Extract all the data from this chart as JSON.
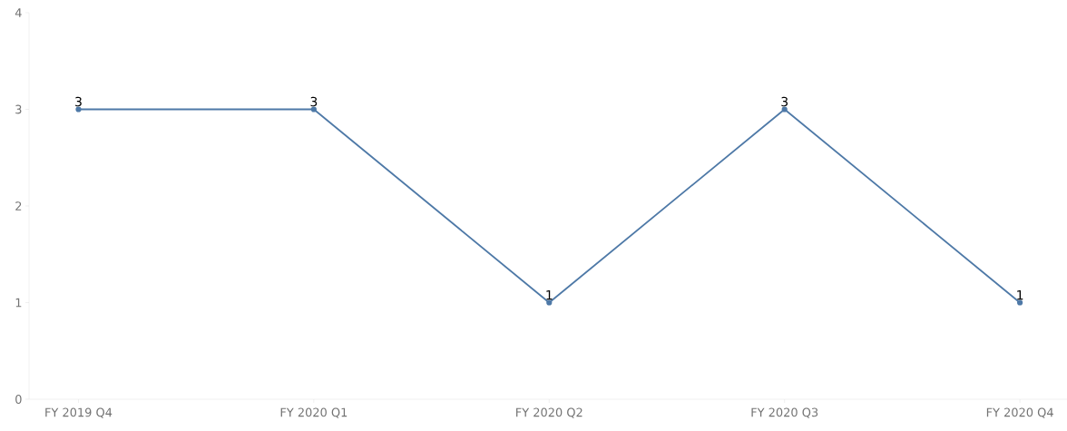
{
  "chart_data": {
    "type": "line",
    "categories": [
      "FY 2019 Q4",
      "FY 2020 Q1",
      "FY 2020 Q2",
      "FY 2020 Q3",
      "FY 2020 Q4"
    ],
    "series": [
      {
        "color": "#4e79a7",
        "values": [
          3,
          3,
          1,
          3,
          1
        ]
      }
    ],
    "ylim": [
      0,
      4
    ],
    "yticks": [
      0,
      1,
      2,
      3,
      4
    ],
    "grid": false,
    "marker": "circle",
    "line_style": "solid",
    "data_labels": true
  }
}
